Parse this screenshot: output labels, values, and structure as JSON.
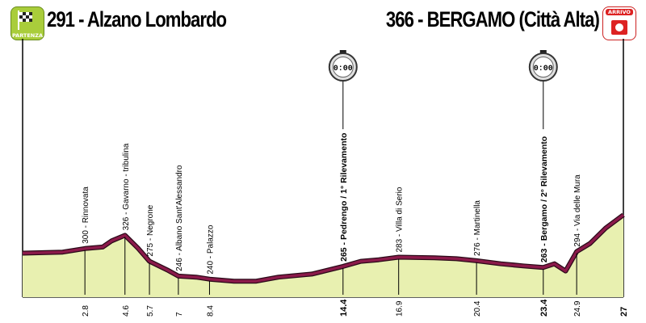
{
  "header": {
    "start_title": "291 - Alzano Lombardo",
    "finish_title": "366 - BERGAMO (Città Alta)",
    "start_badge": "PARTENZA",
    "finish_badge": "ARRIVO"
  },
  "colors": {
    "profile_line": "#8b1a4a",
    "profile_fill": "#e8f0b0",
    "frame": "#000000",
    "start_badge": "#a9cd3b",
    "finish_badge": "#d22222"
  },
  "icons": {
    "start": "checkered-flag-icon",
    "finish": "finish-flag-icon",
    "checkpoint": "stopwatch-icon"
  },
  "chart_data": {
    "type": "area",
    "title": "",
    "xlabel": "",
    "ylabel": "",
    "xlim": [
      0,
      27
    ],
    "ylim": [
      230,
      420
    ],
    "profile": [
      {
        "x": 0,
        "y": 291
      },
      {
        "x": 1.8,
        "y": 293
      },
      {
        "x": 2.8,
        "y": 300
      },
      {
        "x": 3.6,
        "y": 303
      },
      {
        "x": 4.0,
        "y": 315
      },
      {
        "x": 4.6,
        "y": 326
      },
      {
        "x": 5.2,
        "y": 300
      },
      {
        "x": 5.7,
        "y": 275
      },
      {
        "x": 6.5,
        "y": 258
      },
      {
        "x": 7,
        "y": 246
      },
      {
        "x": 7.8,
        "y": 244
      },
      {
        "x": 8.4,
        "y": 240
      },
      {
        "x": 9.5,
        "y": 236
      },
      {
        "x": 10.5,
        "y": 236
      },
      {
        "x": 11.5,
        "y": 244
      },
      {
        "x": 13.0,
        "y": 250
      },
      {
        "x": 14.4,
        "y": 265
      },
      {
        "x": 15.2,
        "y": 275
      },
      {
        "x": 16.0,
        "y": 278
      },
      {
        "x": 16.9,
        "y": 283
      },
      {
        "x": 18.5,
        "y": 282
      },
      {
        "x": 19.5,
        "y": 280
      },
      {
        "x": 20.4,
        "y": 276
      },
      {
        "x": 21.5,
        "y": 270
      },
      {
        "x": 22.5,
        "y": 266
      },
      {
        "x": 23.4,
        "y": 263
      },
      {
        "x": 23.9,
        "y": 270
      },
      {
        "x": 24.4,
        "y": 256
      },
      {
        "x": 24.9,
        "y": 294
      },
      {
        "x": 25.5,
        "y": 310
      },
      {
        "x": 26.2,
        "y": 340
      },
      {
        "x": 27,
        "y": 366
      }
    ],
    "waypoints": [
      {
        "km": 2.8,
        "km_label": "2.8",
        "label": "300 - Rinnovata",
        "bold": false
      },
      {
        "km": 4.6,
        "km_label": "4.6",
        "label": "326 - Gavarno - tribulina",
        "bold": false
      },
      {
        "km": 5.7,
        "km_label": "5.7",
        "label": "275 - Negrone",
        "bold": false
      },
      {
        "km": 7,
        "km_label": "7",
        "label": "246 - Albano Sant'Alessandro",
        "bold": false
      },
      {
        "km": 8.4,
        "km_label": "8.4",
        "label": "240 - Palazzo",
        "bold": false
      },
      {
        "km": 14.4,
        "km_label": "14.4",
        "label": "265 - Pedrengo / 1° Rilevamento",
        "bold": true
      },
      {
        "km": 16.9,
        "km_label": "16.9",
        "label": "283 - Villa di Serio",
        "bold": false
      },
      {
        "km": 20.4,
        "km_label": "20.4",
        "label": "276 - Martinella",
        "bold": false
      },
      {
        "km": 23.4,
        "km_label": "23.4",
        "label": "263 - Bergamo / 2° Rilevamento",
        "bold": true
      },
      {
        "km": 24.9,
        "km_label": "24.9",
        "label": "294 - Via delle Mura",
        "bold": false
      },
      {
        "km": 27,
        "km_label": "27",
        "label": "",
        "bold": true
      }
    ],
    "checkpoints": [
      {
        "km": 14.4,
        "label": "0:00"
      },
      {
        "km": 23.4,
        "label": "0:00"
      }
    ]
  }
}
